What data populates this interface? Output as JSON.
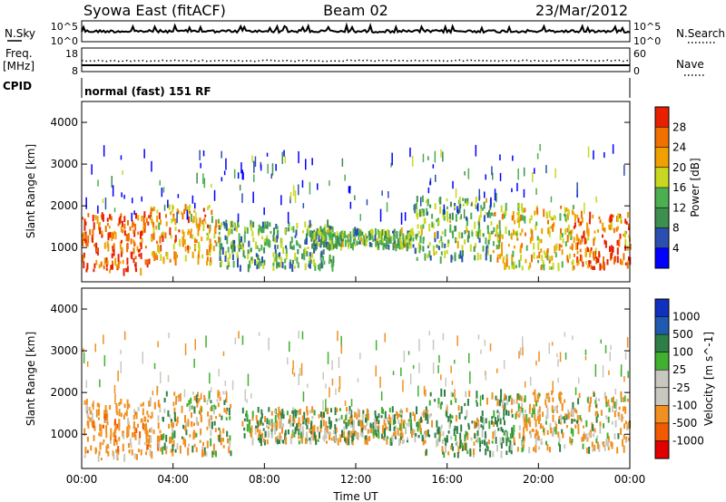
{
  "header": {
    "title_left": "Syowa East (fitACF)",
    "title_center": "Beam 02",
    "title_right": "23/Mar/2012"
  },
  "noise_panel": {
    "left_label": "N.Sky",
    "right_label": "N.Search",
    "tick_top": "10^5",
    "tick_bottom": "10^0"
  },
  "freq_panel": {
    "left_label_1": "Freq.",
    "left_label_2": "[MHz]",
    "left_tick_top": "18",
    "left_tick_bottom": "8",
    "right_label": "Nave",
    "right_tick_top": "60",
    "right_tick_bottom": "0"
  },
  "cpid_panel": {
    "label": "CPID",
    "text": "normal (fast) 151 RF"
  },
  "x_axis": {
    "label": "Time UT",
    "ticks": [
      "00:00",
      "04:00",
      "08:00",
      "12:00",
      "16:00",
      "20:00",
      "00:00"
    ]
  },
  "colors": {
    "power_scale": [
      "#0000ff",
      "#2b4fb0",
      "#3c8f4f",
      "#4caf50",
      "#c8d820",
      "#f0a000",
      "#f07000",
      "#e82000"
    ],
    "velocity_scale": [
      "#e00000",
      "#f05a00",
      "#f09020",
      "#c8c8c0",
      "#c8c8c0",
      "#40b030",
      "#2e7f45",
      "#205ab0",
      "#1030c0"
    ]
  },
  "chart_data": [
    {
      "type": "heatmap",
      "name": "Power",
      "ylabel": "Slant Range [km]",
      "xlabel": "",
      "x_range_hours": [
        0,
        24
      ],
      "ylim": [
        180,
        4500
      ],
      "y_ticks": [
        1000,
        2000,
        3000,
        4000
      ],
      "colorbar_label": "Power [dB]",
      "colorbar_ticks": [
        "4",
        "8",
        "12",
        "16",
        "20",
        "24",
        "28"
      ],
      "colorbar_range": [
        0,
        32
      ],
      "approx_echo_regions": [
        {
          "t_start": 0.0,
          "t_end": 3.0,
          "range_start": 400,
          "range_end": 1800,
          "power_db": 28
        },
        {
          "t_start": 3.0,
          "t_end": 6.0,
          "range_start": 600,
          "range_end": 2000,
          "power_db": 22
        },
        {
          "t_start": 6.0,
          "t_end": 11.0,
          "range_start": 500,
          "range_end": 1600,
          "power_db": 12
        },
        {
          "t_start": 10.0,
          "t_end": 14.5,
          "range_start": 1000,
          "range_end": 1400,
          "power_db": 14
        },
        {
          "t_start": 14.5,
          "t_end": 18.0,
          "range_start": 700,
          "range_end": 2200,
          "power_db": 14
        },
        {
          "t_start": 18.0,
          "t_end": 21.5,
          "range_start": 500,
          "range_end": 2000,
          "power_db": 20
        },
        {
          "t_start": 21.5,
          "t_end": 24.0,
          "range_start": 500,
          "range_end": 1800,
          "power_db": 26
        }
      ]
    },
    {
      "type": "heatmap",
      "name": "Velocity",
      "ylabel": "Slant Range [km]",
      "xlabel": "Time UT",
      "x_range_hours": [
        0,
        24
      ],
      "ylim": [
        180,
        4500
      ],
      "y_ticks": [
        1000,
        2000,
        3000,
        4000
      ],
      "colorbar_label": "Velocity [m s^-1]",
      "colorbar_ticks": [
        "-1000",
        "-500",
        "-100",
        "-25",
        "25",
        "100",
        "500",
        "1000"
      ],
      "approx_echo_regions": [
        {
          "t_start": 0.0,
          "t_end": 3.5,
          "range_start": 400,
          "range_end": 1800,
          "velocity": -300
        },
        {
          "t_start": 3.5,
          "t_end": 6.5,
          "range_start": 500,
          "range_end": 2000,
          "velocity": -100
        },
        {
          "t_start": 7.0,
          "t_end": 15.0,
          "range_start": 800,
          "range_end": 1600,
          "velocity": 0
        },
        {
          "t_start": 15.0,
          "t_end": 19.0,
          "range_start": 500,
          "range_end": 2000,
          "velocity": 100
        },
        {
          "t_start": 19.0,
          "t_end": 24.0,
          "range_start": 600,
          "range_end": 2000,
          "velocity": -150
        }
      ]
    }
  ]
}
